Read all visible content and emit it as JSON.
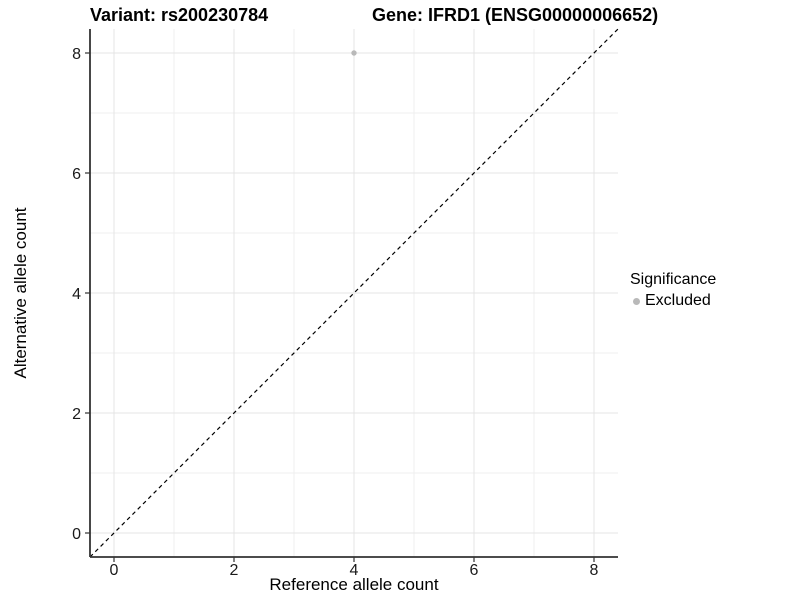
{
  "chart_data": {
    "type": "scatter",
    "titles": {
      "variant": "Variant: rs200230784",
      "gene": "Gene: IFRD1 (ENSG00000006652)"
    },
    "xlabel": "Reference allele count",
    "ylabel": "Alternative allele count",
    "xlim": [
      -0.4,
      8.4
    ],
    "ylim": [
      -0.4,
      8.4
    ],
    "x_ticks": [
      0,
      2,
      4,
      6,
      8
    ],
    "y_ticks": [
      0,
      2,
      4,
      6,
      8
    ],
    "x_minor_ticks": [
      1,
      3,
      5,
      7
    ],
    "y_minor_ticks": [
      1,
      3,
      5,
      7
    ],
    "grid": "on",
    "series": [
      {
        "name": "Excluded",
        "color": "#b9b9b9",
        "points": [
          {
            "x": 4,
            "y": 8
          }
        ]
      }
    ],
    "reference_line": {
      "slope": 1,
      "intercept": 0,
      "line_style": "dashed",
      "color": "#000000"
    },
    "legend": {
      "title": "Significance",
      "position": "right",
      "items": [
        {
          "label": "Excluded",
          "color": "#b9b9b9",
          "marker": "circle"
        }
      ]
    },
    "colors": {
      "background": "#ffffff",
      "grid_major": "#e4e4e4",
      "grid_minor": "#efefef",
      "axis_line": "#333333",
      "tick_mark": "#333333",
      "text": "#1a1a1a",
      "point": "#b9b9b9"
    }
  }
}
